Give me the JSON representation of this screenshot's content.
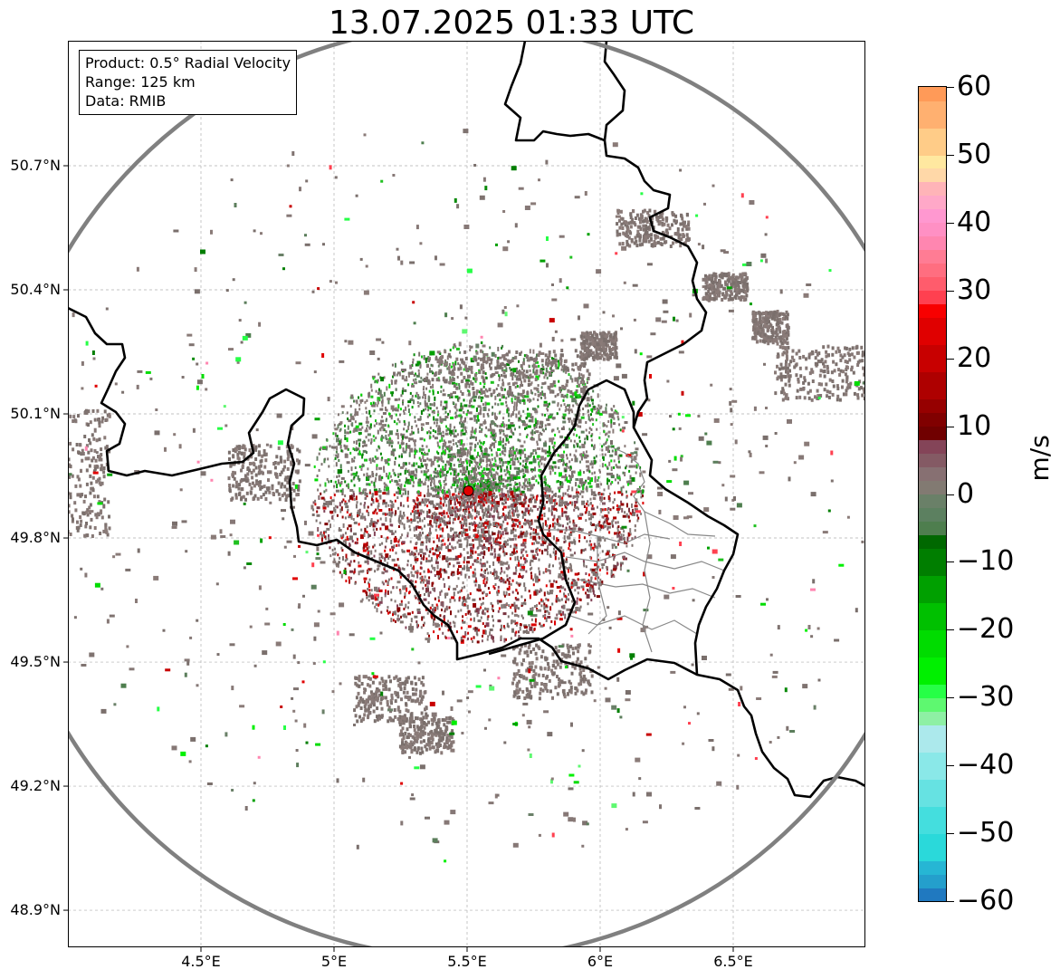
{
  "map": {
    "title": "13.07.2025 01:33 UTC",
    "info_box": {
      "product": "Product: 0.5° Radial Velocity",
      "range": "Range: 125 km",
      "source": "Data: RMIB"
    },
    "lat_ticks": [
      {
        "label": "50.7°N",
        "lat": 50.7
      },
      {
        "label": "50.4°N",
        "lat": 50.4
      },
      {
        "label": "50.1°N",
        "lat": 50.1
      },
      {
        "label": "49.8°N",
        "lat": 49.8
      },
      {
        "label": "49.5°N",
        "lat": 49.5
      },
      {
        "label": "49.2°N",
        "lat": 49.2
      },
      {
        "label": "48.9°N",
        "lat": 48.9
      }
    ],
    "lon_ticks": [
      {
        "label": "4.5°E",
        "lon": 4.5
      },
      {
        "label": "5°E",
        "lon": 5.0
      },
      {
        "label": "5.5°E",
        "lon": 5.5
      },
      {
        "label": "6°E",
        "lon": 6.0
      },
      {
        "label": "6.5°E",
        "lon": 6.5
      }
    ],
    "lon_range": [
      4.0,
      7.0
    ],
    "lat_range": [
      48.8,
      50.99
    ],
    "radar_site": {
      "lon": 5.505,
      "lat": 49.914,
      "color": "#e00000"
    },
    "range_ring_color": "#808080",
    "grid": true,
    "colors": {
      "border": "#000000",
      "province_lines": "#888888",
      "gridlines": "#b0b0b0"
    }
  },
  "colorbar": {
    "unit": "m/s",
    "min": -60,
    "max": 60,
    "tick_labels": [
      "60",
      "50",
      "40",
      "30",
      "20",
      "10",
      "0",
      "−10",
      "−20",
      "−30",
      "−40",
      "−50",
      "−60"
    ],
    "tick_values": [
      60,
      50,
      40,
      30,
      20,
      10,
      0,
      -10,
      -20,
      -30,
      -40,
      -50,
      -60
    ],
    "stops": [
      {
        "from": -60,
        "to": -58,
        "color": "#2079c0"
      },
      {
        "from": -58,
        "to": -56,
        "color": "#249fcc"
      },
      {
        "from": -56,
        "to": -54,
        "color": "#26b6d4"
      },
      {
        "from": -54,
        "to": -50,
        "color": "#2ad9da"
      },
      {
        "from": -50,
        "to": -46,
        "color": "#44dede"
      },
      {
        "from": -46,
        "to": -42,
        "color": "#66e2e2"
      },
      {
        "from": -42,
        "to": -38,
        "color": "#8ae8e8"
      },
      {
        "from": -38,
        "to": -34,
        "color": "#ace9ec"
      },
      {
        "from": -34,
        "to": -32,
        "color": "#8ef0a4"
      },
      {
        "from": -32,
        "to": -30,
        "color": "#5ef870"
      },
      {
        "from": -30,
        "to": -28,
        "color": "#26ff46"
      },
      {
        "from": -28,
        "to": -24,
        "color": "#00f000"
      },
      {
        "from": -24,
        "to": -20,
        "color": "#00dc00"
      },
      {
        "from": -20,
        "to": -16,
        "color": "#00c000"
      },
      {
        "from": -16,
        "to": -12,
        "color": "#00a000"
      },
      {
        "from": -12,
        "to": -8,
        "color": "#007e00"
      },
      {
        "from": -8,
        "to": -6,
        "color": "#006800"
      },
      {
        "from": -6,
        "to": -4,
        "color": "#4e7e4e"
      },
      {
        "from": -4,
        "to": -2,
        "color": "#5c8060"
      },
      {
        "from": -2,
        "to": 0,
        "color": "#6a8068"
      },
      {
        "from": 0,
        "to": 2,
        "color": "#827a72"
      },
      {
        "from": 2,
        "to": 4,
        "color": "#877072"
      },
      {
        "from": 4,
        "to": 6,
        "color": "#845a64"
      },
      {
        "from": 6,
        "to": 8,
        "color": "#844458"
      },
      {
        "from": 8,
        "to": 10,
        "color": "#700000"
      },
      {
        "from": 10,
        "to": 12,
        "color": "#800000"
      },
      {
        "from": 12,
        "to": 14,
        "color": "#960000"
      },
      {
        "from": 14,
        "to": 18,
        "color": "#ae0000"
      },
      {
        "from": 18,
        "to": 22,
        "color": "#c80000"
      },
      {
        "from": 22,
        "to": 26,
        "color": "#e00000"
      },
      {
        "from": 26,
        "to": 28,
        "color": "#f80000"
      },
      {
        "from": 28,
        "to": 30,
        "color": "#ff4050"
      },
      {
        "from": 30,
        "to": 32,
        "color": "#ff5c6c"
      },
      {
        "from": 32,
        "to": 34,
        "color": "#ff6e80"
      },
      {
        "from": 34,
        "to": 36,
        "color": "#ff7c94"
      },
      {
        "from": 36,
        "to": 38,
        "color": "#ff86b0"
      },
      {
        "from": 38,
        "to": 40,
        "color": "#ff90c4"
      },
      {
        "from": 40,
        "to": 42,
        "color": "#ff98d0"
      },
      {
        "from": 42,
        "to": 44,
        "color": "#ffa8c8"
      },
      {
        "from": 44,
        "to": 46,
        "color": "#ffb4b8"
      },
      {
        "from": 46,
        "to": 48,
        "color": "#ffd8a8"
      },
      {
        "from": 48,
        "to": 50,
        "color": "#ffe8a0"
      },
      {
        "from": 50,
        "to": 54,
        "color": "#ffcc88"
      },
      {
        "from": 54,
        "to": 58,
        "color": "#ffb070"
      },
      {
        "from": 58,
        "to": 60,
        "color": "#ff9a58"
      }
    ]
  }
}
